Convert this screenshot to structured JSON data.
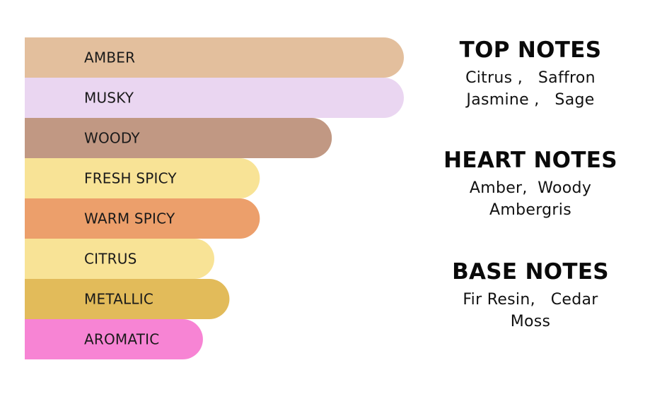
{
  "chart_data": {
    "type": "bar",
    "orientation": "horizontal",
    "categories": [
      "AMBER",
      "MUSKY",
      "WOODY",
      "FRESH SPICY",
      "WARM SPICY",
      "CITRUS",
      "METALLIC",
      "AROMATIC"
    ],
    "values": [
      100,
      100,
      81,
      62,
      62,
      50,
      54,
      47
    ],
    "colors": [
      "#e3bf9d",
      "#ead6f1",
      "#c19883",
      "#f8e396",
      "#ec9f6b",
      "#f8e396",
      "#e2bb5a",
      "#f784d4"
    ],
    "title": "",
    "xlabel": "",
    "ylabel": "",
    "xlim": [
      0,
      100
    ],
    "grid": false,
    "legend": "none"
  },
  "notes": {
    "top": {
      "heading": "TOP NOTES",
      "lines": [
        "Citrus ,   Saffron",
        "Jasmine ,   Sage"
      ]
    },
    "heart": {
      "heading": "HEART NOTES",
      "lines": [
        "Amber,  Woody",
        "Ambergris"
      ]
    },
    "base": {
      "heading": "BASE NOTES",
      "lines": [
        "Fir Resin,   Cedar",
        "Moss"
      ]
    }
  }
}
